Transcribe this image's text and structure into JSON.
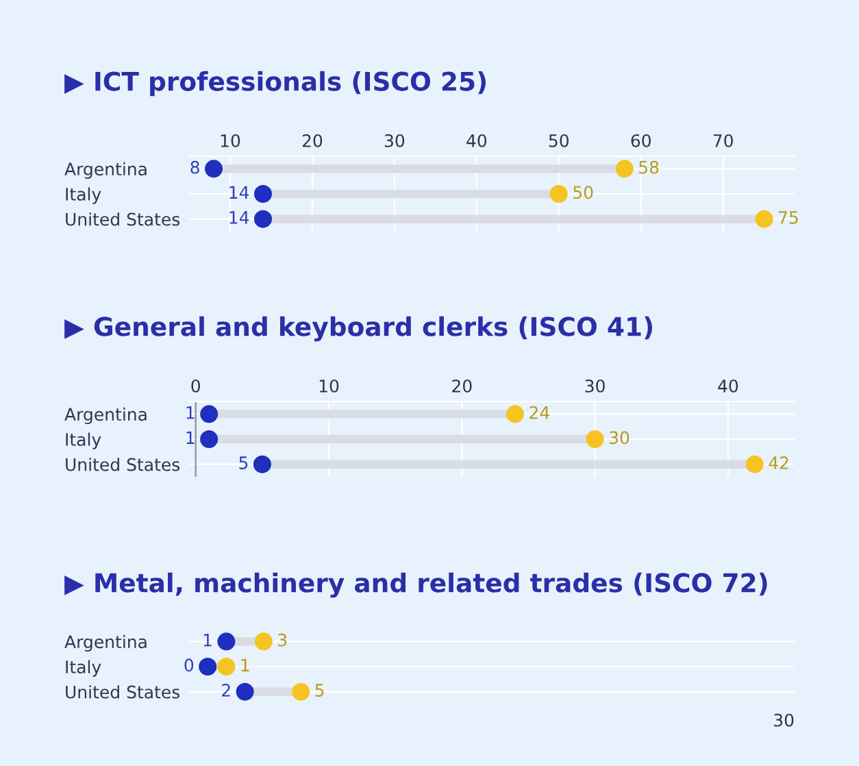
{
  "chart_data": [
    {
      "type": "scatter",
      "orientation": "horizontal",
      "title": "▶ ICT professionals (ISCO 25)",
      "categories": [
        "Argentina",
        "Italy",
        "United States"
      ],
      "series": [
        {
          "color": "#1f2fbf",
          "values": [
            8,
            14,
            14
          ],
          "axis": "x2"
        },
        {
          "color": "#f5c423",
          "values": [
            58,
            50,
            75
          ],
          "axis": "x2"
        }
      ],
      "x2lim": [
        5,
        78.7
      ],
      "x2ticks": [
        10,
        20,
        30,
        40,
        50,
        60,
        70
      ],
      "grid": true,
      "data_labels": true,
      "marker": "circle"
    },
    {
      "type": "scatter",
      "orientation": "horizontal",
      "title": "▶ General and keyboard clerks (ISCO 41)",
      "categories": [
        "Argentina",
        "Italy",
        "United States"
      ],
      "series": [
        {
          "color": "#1f2fbf",
          "values": [
            1,
            1,
            5
          ],
          "axis": "x2"
        },
        {
          "color": "#f5c423",
          "values": [
            24,
            30,
            42
          ],
          "axis": "x2"
        }
      ],
      "x2lim": [
        -0.5,
        45
      ],
      "x2ticks": [
        0,
        10,
        20,
        30,
        40
      ],
      "grid": true,
      "data_labels": true,
      "marker": "circle"
    },
    {
      "type": "scatter",
      "orientation": "horizontal",
      "title": "▶ Metal, machinery and related trades (ISCO 72)",
      "categories": [
        "Argentina",
        "Italy",
        "United States"
      ],
      "series": [
        {
          "color": "#1f2fbf",
          "values": [
            1,
            0,
            2
          ]
        },
        {
          "color": "#f5c423",
          "values": [
            3,
            1,
            5
          ]
        }
      ],
      "annotations": [
        "30"
      ],
      "grid": true,
      "data_labels": true,
      "marker": "circle"
    }
  ]
}
